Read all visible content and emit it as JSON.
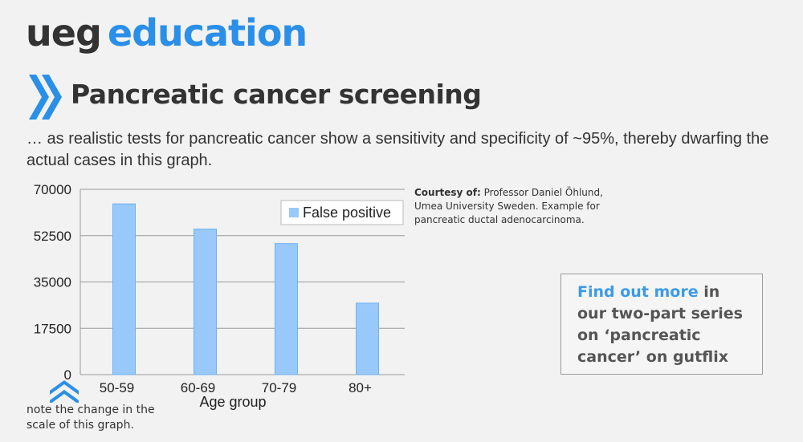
{
  "brand": {
    "part1": "ueg",
    "part2": "education"
  },
  "title": "Pancreatic cancer screening",
  "intro": "… as realistic tests for pancreatic cancer show a sensitivity and specificity of ~95%, thereby dwarfing the actual cases in this graph.",
  "courtesy": {
    "label": "Courtesy of:",
    "text": " Professor Daniel Öhlund, Umea University Sweden. Example for pancreatic ductal adenocarcinoma."
  },
  "note": "note the change in the scale of this graph.",
  "info_box": {
    "highlight": "Find out more",
    "text": " in our two-part series on ‘pancreatic cancer’ on gutflix"
  },
  "colors": {
    "accent": "#2a8fe8",
    "bar": "#99c9fa",
    "bar_edge": "#6fb1f5"
  },
  "chart_data": {
    "type": "bar",
    "categories": [
      "50-59",
      "60-69",
      "70-79",
      "80+"
    ],
    "series": [
      {
        "name": "False positive",
        "values": [
          64500,
          55000,
          49500,
          27000
        ]
      }
    ],
    "xlabel": "Age group",
    "ylabel": "",
    "ylim": [
      0,
      70000
    ],
    "yticks": [
      0,
      17500,
      35000,
      52500,
      70000
    ],
    "grid": true,
    "legend": "top-right"
  }
}
